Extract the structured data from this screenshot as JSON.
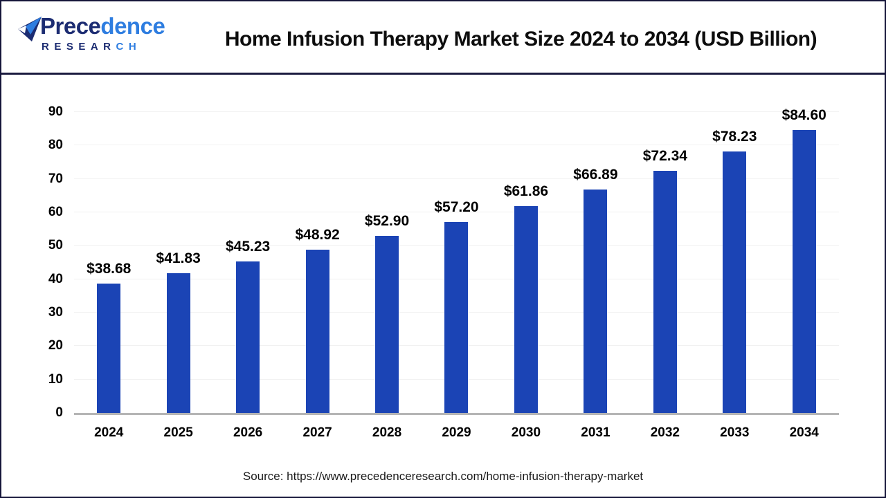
{
  "header": {
    "logo": {
      "icon": "paper-plane-icon",
      "brand_primary": "Prece",
      "brand_secondary": "dence",
      "subtitle_primary": "RESEAR",
      "subtitle_secondary": "CH"
    }
  },
  "chart_data": {
    "type": "bar",
    "title": "Home Infusion Therapy Market Size 2024 to 2034 (USD Billion)",
    "categories": [
      "2024",
      "2025",
      "2026",
      "2027",
      "2028",
      "2029",
      "2030",
      "2031",
      "2032",
      "2033",
      "2034"
    ],
    "values": [
      38.68,
      41.83,
      45.23,
      48.92,
      52.9,
      57.2,
      61.86,
      66.89,
      72.34,
      78.23,
      84.6
    ],
    "value_labels": [
      "$38.68",
      "$41.83",
      "$45.23",
      "$48.92",
      "$52.90",
      "$57.20",
      "$61.86",
      "$66.89",
      "$72.34",
      "$78.23",
      "$84.60"
    ],
    "xlabel": "",
    "ylabel": "",
    "ylim": [
      0,
      90
    ],
    "yticks": [
      0,
      10,
      20,
      30,
      40,
      50,
      60,
      70,
      80,
      90
    ],
    "grid": "horizontal-light",
    "legend": "none",
    "bar_color": "#1B44B5"
  },
  "footer": {
    "source": "Source: https://www.precedenceresearch.com/home-infusion-therapy-market"
  },
  "colors": {
    "navy": "#1C2C72",
    "blue": "#2E7DE0",
    "bar": "#1B44B5",
    "border": "#15153A",
    "axis_line": "#B5B5B5",
    "gridline": "#F1F1F1",
    "title_text": "#0D0D0D"
  }
}
